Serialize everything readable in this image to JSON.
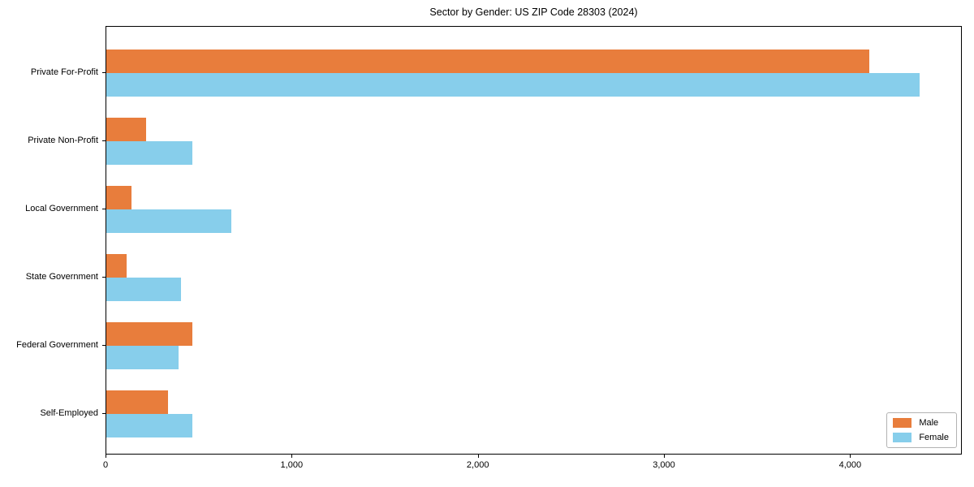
{
  "figure": {
    "background": "#ffffff"
  },
  "chart_data": {
    "type": "bar",
    "orientation": "horizontal",
    "title": "Sector by Gender: US ZIP Code 28303 (2024)",
    "categories": [
      "Private For-Profit",
      "Private Non-Profit",
      "Local Government",
      "State Government",
      "Federal Government",
      "Self-Employed"
    ],
    "series": [
      {
        "name": "Male",
        "color": "#E87D3C",
        "values": [
          4100,
          215,
          135,
          110,
          460,
          330
        ]
      },
      {
        "name": "Female",
        "color": "#87CEEB",
        "values": [
          4370,
          460,
          670,
          400,
          390,
          460
        ]
      }
    ],
    "xlabel": "",
    "ylabel": "",
    "xlim": [
      0,
      4600
    ],
    "xticks": [
      0,
      1000,
      2000,
      3000,
      4000
    ],
    "xtick_labels": [
      "0",
      "1,000",
      "2,000",
      "3,000",
      "4,000"
    ],
    "grid": false,
    "legend": {
      "position": "lower right",
      "entries": [
        "Male",
        "Female"
      ]
    },
    "axis_color": "#000000"
  }
}
